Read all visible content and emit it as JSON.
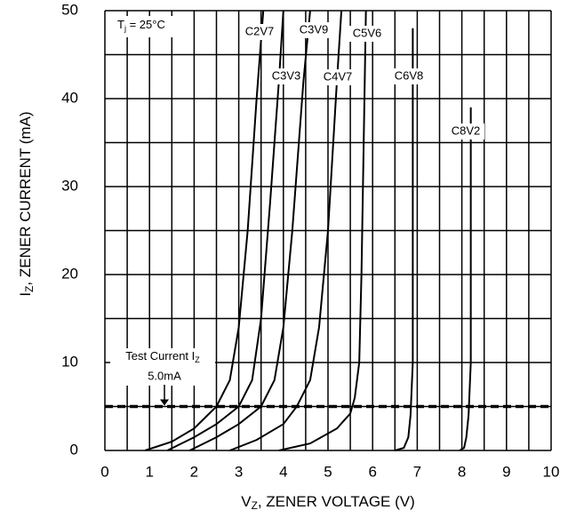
{
  "chart_data": {
    "type": "line",
    "x_label": {
      "main": "V",
      "sub": "Z",
      "rest": ", ZENER VOLTAGE (V)"
    },
    "y_label": {
      "main": "I",
      "sub": "Z",
      "rest": ", ZENER CURRENT (mA)"
    },
    "condition": {
      "main": "T",
      "sub": "j",
      "rest": " = 25°C"
    },
    "test_current": {
      "main": "Test Current I",
      "sub": "Z",
      "value_label": "5.0mA",
      "value": 5
    },
    "xlim": [
      0,
      10
    ],
    "ylim": [
      0,
      50
    ],
    "xticks": [
      0,
      1,
      2,
      3,
      4,
      5,
      6,
      7,
      8,
      9,
      10
    ],
    "yticks": [
      0,
      10,
      20,
      30,
      40,
      50
    ],
    "x_grid": [
      0.5,
      1.5,
      2.5,
      3.5,
      4.5,
      5.5,
      6.5,
      7.5,
      8.5,
      9.5
    ],
    "y_grid": [
      5,
      15,
      25,
      35,
      45
    ],
    "grid": true,
    "series": [
      {
        "name": "C2V7",
        "color": "#000000",
        "x": [
          0.9,
          1.5,
          2.0,
          2.5,
          2.8,
          3.0,
          3.2,
          3.4,
          3.55
        ],
        "values": [
          0,
          1,
          2.5,
          5,
          8,
          14,
          25,
          40,
          50
        ]
      },
      {
        "name": "C3V3",
        "color": "#000000",
        "x": [
          1.4,
          2.0,
          2.5,
          3.0,
          3.3,
          3.5,
          3.7,
          3.9,
          4.0
        ],
        "values": [
          0,
          1.5,
          3,
          5,
          8,
          15,
          28,
          42,
          50
        ]
      },
      {
        "name": "C3V9",
        "color": "#000000",
        "x": [
          1.9,
          2.5,
          3.0,
          3.5,
          3.8,
          4.0,
          4.2,
          4.45,
          4.6
        ],
        "values": [
          0,
          1.5,
          3,
          5,
          8,
          14,
          25,
          42,
          50
        ]
      },
      {
        "name": "C4V7",
        "color": "#000000",
        "x": [
          2.8,
          3.4,
          4.0,
          4.3,
          4.6,
          4.8,
          5.0,
          5.2,
          5.3
        ],
        "values": [
          0,
          1.2,
          3,
          5,
          8,
          14,
          25,
          42,
          50
        ]
      },
      {
        "name": "C5V6",
        "color": "#000000",
        "x": [
          3.9,
          4.6,
          5.2,
          5.5,
          5.6,
          5.7,
          5.75,
          5.8,
          5.85
        ],
        "values": [
          0,
          0.8,
          2.5,
          4.2,
          6,
          10,
          20,
          35,
          50
        ]
      },
      {
        "name": "C6V8",
        "color": "#000000",
        "x": [
          6.5,
          6.7,
          6.8,
          6.85,
          6.9,
          6.9
        ],
        "values": [
          0,
          0.3,
          1.5,
          4,
          10,
          48
        ]
      },
      {
        "name": "C8V2",
        "color": "#000000",
        "x": [
          7.95,
          8.05,
          8.1,
          8.15,
          8.2,
          8.2
        ],
        "values": [
          0,
          0.3,
          1.5,
          4,
          10,
          39
        ]
      }
    ]
  }
}
